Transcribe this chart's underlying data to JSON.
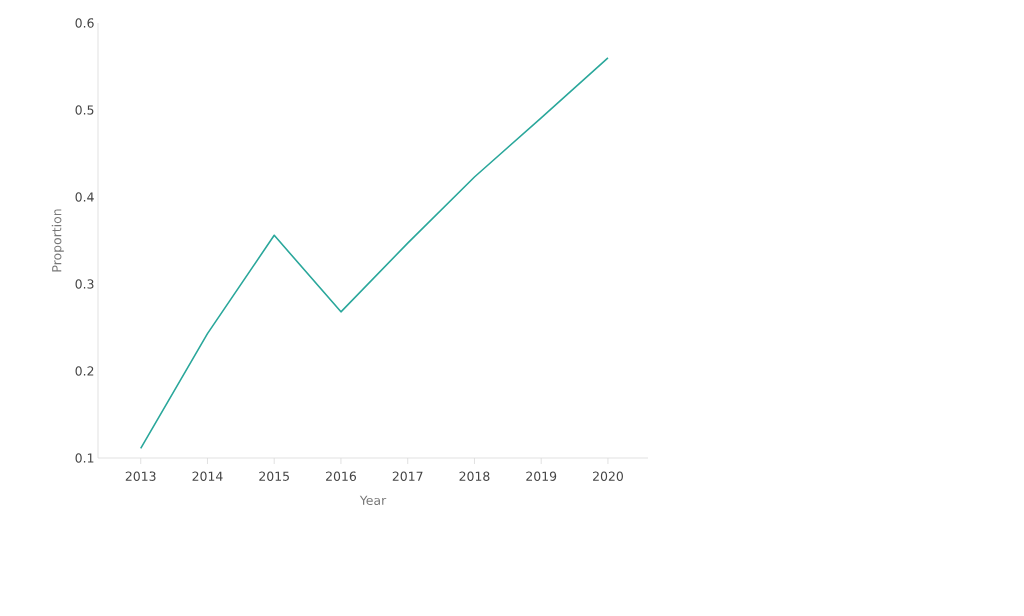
{
  "chart_data": {
    "type": "line",
    "xlabel": "Year",
    "ylabel": "Proportion",
    "categories": [
      "2013",
      "2014",
      "2015",
      "2016",
      "2017",
      "2018",
      "2019",
      "2020"
    ],
    "series": [
      {
        "color": "#2aa79b",
        "values": [
          0.111,
          0.243,
          0.356,
          0.268,
          0.347,
          0.423,
          0.491,
          0.56
        ]
      }
    ],
    "ylim": [
      0.1,
      0.6
    ],
    "yticks": [
      0.1,
      0.2,
      0.3,
      0.4,
      0.5,
      0.6
    ],
    "grid": false,
    "marker": "none",
    "line_style": "solid"
  }
}
